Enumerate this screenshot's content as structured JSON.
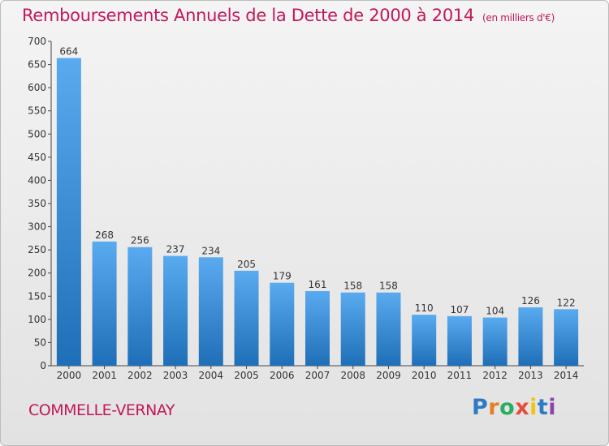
{
  "title": "Remboursements Annuels de la Dette de 2000 à 2014",
  "unit": "(en milliers d'€)",
  "commune": "COMMELLE-VERNAY",
  "logo": {
    "letters": [
      "P",
      "r",
      "o",
      "x",
      "i",
      "t",
      "i"
    ],
    "colors": [
      "#2e7bc4",
      "#e67e22",
      "#27ae60",
      "#e74c3c",
      "#f1c40f",
      "#2e7bc4",
      "#8e44ad"
    ]
  },
  "colors": {
    "bar_top": "#5aaaf0",
    "bar_bottom": "#1f6fb8",
    "title": "#c2185b"
  },
  "chart_data": {
    "type": "bar",
    "title": "Remboursements Annuels de la Dette de 2000 à 2014",
    "categories": [
      "2000",
      "2001",
      "2002",
      "2003",
      "2004",
      "2005",
      "2006",
      "2007",
      "2008",
      "2009",
      "2010",
      "2011",
      "2012",
      "2013",
      "2014"
    ],
    "values": [
      664,
      268,
      256,
      237,
      234,
      205,
      179,
      161,
      158,
      158,
      110,
      107,
      104,
      126,
      122
    ],
    "ylim": [
      0,
      700
    ],
    "yticks": [
      0,
      50,
      100,
      150,
      200,
      250,
      300,
      350,
      400,
      450,
      500,
      550,
      600,
      650,
      700
    ],
    "grid": false,
    "xlabel": "",
    "ylabel": ""
  }
}
